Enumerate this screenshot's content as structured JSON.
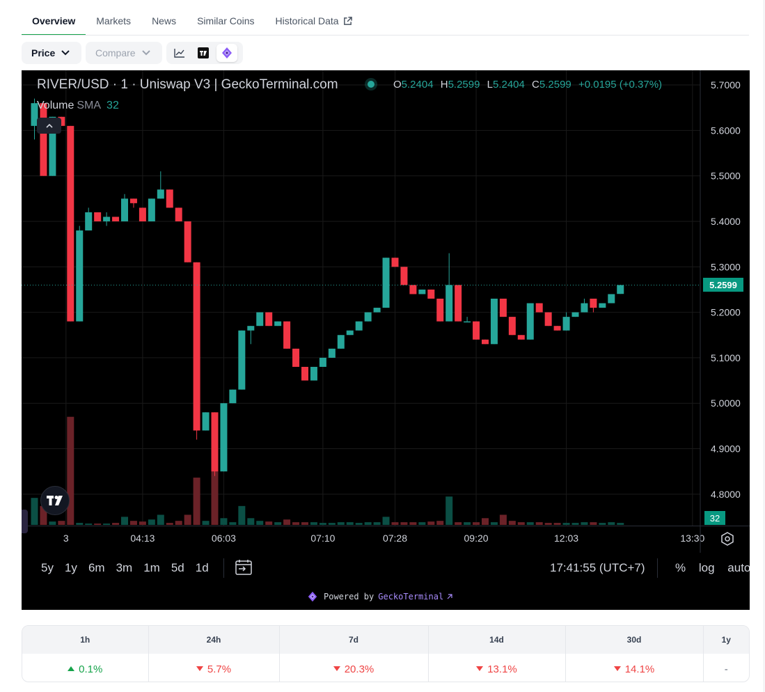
{
  "tabs": [
    {
      "label": "Overview",
      "active": true
    },
    {
      "label": "Markets",
      "active": false
    },
    {
      "label": "News",
      "active": false
    },
    {
      "label": "Similar Coins",
      "active": false
    },
    {
      "label": "Historical Data",
      "active": false,
      "external": true
    }
  ],
  "toolbar": {
    "price_label": "Price",
    "compare_label": "Compare",
    "views": [
      {
        "icon": "line-chart-icon",
        "selected": false
      },
      {
        "icon": "tradingview-icon",
        "selected": false
      },
      {
        "icon": "geckoterminal-icon",
        "selected": true
      }
    ]
  },
  "chart": {
    "title": "RIVER/USD · 1 · Uniswap V3 | GeckoTerminal.com",
    "ohlc": {
      "o_label": "O",
      "o": "5.2404",
      "h_label": "H",
      "h": "5.2599",
      "l_label": "L",
      "l": "5.2404",
      "c_label": "C",
      "c": "5.2599",
      "change": "+0.0195 (+0.37%)"
    },
    "volume_legend": {
      "label": "Volume",
      "indicator": "SMA",
      "value": "32"
    },
    "current_price_label": "5.2599",
    "volume_label": "32",
    "ranges": [
      "5y",
      "1y",
      "6m",
      "3m",
      "1m",
      "5d",
      "1d"
    ],
    "clock": "17:41:55 (UTC+7)",
    "scale_options": [
      "%",
      "log",
      "auto"
    ],
    "powered_by": "Powered by",
    "powered_brand": "GeckoTerminal",
    "colors": {
      "up": "#26a69a",
      "down": "#f23645",
      "vol_up": "#0b4f45",
      "vol_down": "#6b2228",
      "background": "#000000"
    }
  },
  "chart_data": {
    "type": "candlestick",
    "title": "RIVER/USD · 1 · Uniswap V3 | GeckoTerminal.com",
    "ylim": [
      4.74,
      5.72
    ],
    "y_ticks": [
      "5.7000",
      "5.6000",
      "5.5000",
      "5.4000",
      "5.3000",
      "5.2000",
      "5.1000",
      "5.0000",
      "4.9000",
      "4.8000"
    ],
    "x_ticks": [
      {
        "i": 3.5,
        "label": "3"
      },
      {
        "i": 12,
        "label": "04:13"
      },
      {
        "i": 21,
        "label": "06:03"
      },
      {
        "i": 32,
        "label": "07:10"
      },
      {
        "i": 40,
        "label": "07:28"
      },
      {
        "i": 49,
        "label": "09:20"
      },
      {
        "i": 59,
        "label": "12:03"
      },
      {
        "i": 73,
        "label": "13:30"
      }
    ],
    "series": [
      {
        "name": "Price",
        "ohlc": [
          [
            5.61,
            5.67,
            5.58,
            5.66
          ],
          [
            5.66,
            5.66,
            5.5,
            5.5
          ],
          [
            5.5,
            5.63,
            5.5,
            5.63
          ],
          [
            5.63,
            5.63,
            5.61,
            5.61
          ],
          [
            5.61,
            5.61,
            5.18,
            5.18
          ],
          [
            5.18,
            5.39,
            5.18,
            5.38
          ],
          [
            5.38,
            5.43,
            5.38,
            5.42
          ],
          [
            5.42,
            5.42,
            5.4,
            5.4
          ],
          [
            5.4,
            5.42,
            5.39,
            5.41
          ],
          [
            5.41,
            5.41,
            5.4,
            5.4
          ],
          [
            5.4,
            5.46,
            5.4,
            5.45
          ],
          [
            5.45,
            5.45,
            5.43,
            5.44
          ],
          [
            5.43,
            5.43,
            5.4,
            5.4
          ],
          [
            5.4,
            5.45,
            5.4,
            5.45
          ],
          [
            5.45,
            5.51,
            5.45,
            5.47
          ],
          [
            5.47,
            5.47,
            5.43,
            5.43
          ],
          [
            5.43,
            5.43,
            5.4,
            5.4
          ],
          [
            5.4,
            5.4,
            5.31,
            5.31
          ],
          [
            5.31,
            5.31,
            4.92,
            4.94
          ],
          [
            4.94,
            4.98,
            4.94,
            4.98
          ],
          [
            4.98,
            4.98,
            4.84,
            4.85
          ],
          [
            4.85,
            5.0,
            4.85,
            5.0
          ],
          [
            5.0,
            5.03,
            5.0,
            5.03
          ],
          [
            5.03,
            5.16,
            5.03,
            5.16
          ],
          [
            5.16,
            5.17,
            5.13,
            5.17
          ],
          [
            5.17,
            5.2,
            5.17,
            5.2
          ],
          [
            5.2,
            5.2,
            5.17,
            5.17
          ],
          [
            5.17,
            5.18,
            5.17,
            5.18
          ],
          [
            5.18,
            5.18,
            5.12,
            5.12
          ],
          [
            5.12,
            5.12,
            5.08,
            5.08
          ],
          [
            5.08,
            5.08,
            5.05,
            5.05
          ],
          [
            5.05,
            5.08,
            5.05,
            5.08
          ],
          [
            5.08,
            5.1,
            5.08,
            5.1
          ],
          [
            5.1,
            5.12,
            5.1,
            5.12
          ],
          [
            5.12,
            5.15,
            5.12,
            5.15
          ],
          [
            5.15,
            5.16,
            5.15,
            5.16
          ],
          [
            5.16,
            5.18,
            5.16,
            5.18
          ],
          [
            5.18,
            5.2,
            5.18,
            5.2
          ],
          [
            5.2,
            5.21,
            5.2,
            5.21
          ],
          [
            5.21,
            5.32,
            5.21,
            5.32
          ],
          [
            5.32,
            5.32,
            5.3,
            5.3
          ],
          [
            5.3,
            5.3,
            5.26,
            5.26
          ],
          [
            5.26,
            5.26,
            5.24,
            5.24
          ],
          [
            5.24,
            5.25,
            5.24,
            5.25
          ],
          [
            5.25,
            5.25,
            5.23,
            5.23
          ],
          [
            5.23,
            5.23,
            5.18,
            5.18
          ],
          [
            5.18,
            5.33,
            5.18,
            5.26
          ],
          [
            5.26,
            5.26,
            5.18,
            5.18
          ],
          [
            5.18,
            5.19,
            5.18,
            5.18
          ],
          [
            5.18,
            5.18,
            5.14,
            5.14
          ],
          [
            5.14,
            5.14,
            5.13,
            5.13
          ],
          [
            5.13,
            5.23,
            5.13,
            5.23
          ],
          [
            5.23,
            5.23,
            5.19,
            5.19
          ],
          [
            5.19,
            5.19,
            5.15,
            5.15
          ],
          [
            5.15,
            5.15,
            5.14,
            5.14
          ],
          [
            5.14,
            5.22,
            5.14,
            5.22
          ],
          [
            5.22,
            5.22,
            5.2,
            5.2
          ],
          [
            5.2,
            5.2,
            5.17,
            5.17
          ],
          [
            5.17,
            5.17,
            5.16,
            5.16
          ],
          [
            5.16,
            5.2,
            5.16,
            5.19
          ],
          [
            5.19,
            5.2,
            5.19,
            5.2
          ],
          [
            5.2,
            5.23,
            5.2,
            5.22
          ],
          [
            5.23,
            5.23,
            5.2,
            5.21
          ],
          [
            5.21,
            5.22,
            5.21,
            5.22
          ],
          [
            5.22,
            5.24,
            5.22,
            5.24
          ],
          [
            5.2404,
            5.2599,
            5.2404,
            5.2599
          ]
        ]
      },
      {
        "name": "Volume",
        "values": [
          40,
          28,
          5,
          6,
          160,
          3,
          2,
          2,
          2,
          3,
          12,
          6,
          5,
          8,
          15,
          3,
          6,
          15,
          70,
          6,
          100,
          10,
          4,
          28,
          10,
          6,
          5,
          4,
          8,
          4,
          4,
          4,
          3,
          3,
          4,
          4,
          3,
          4,
          4,
          12,
          4,
          4,
          4,
          4,
          5,
          6,
          42,
          4,
          4,
          4,
          10,
          4,
          15,
          6,
          4,
          4,
          4,
          3,
          3,
          3,
          3,
          4,
          4,
          3,
          4,
          3
        ]
      }
    ]
  },
  "stats": {
    "headers": [
      "1h",
      "24h",
      "7d",
      "14d",
      "30d",
      "1y"
    ],
    "values": [
      {
        "text": "0.1%",
        "dir": "up"
      },
      {
        "text": "5.7%",
        "dir": "down"
      },
      {
        "text": "20.3%",
        "dir": "down"
      },
      {
        "text": "13.1%",
        "dir": "down"
      },
      {
        "text": "14.1%",
        "dir": "down"
      },
      {
        "text": "-",
        "dir": "neutral"
      }
    ]
  }
}
